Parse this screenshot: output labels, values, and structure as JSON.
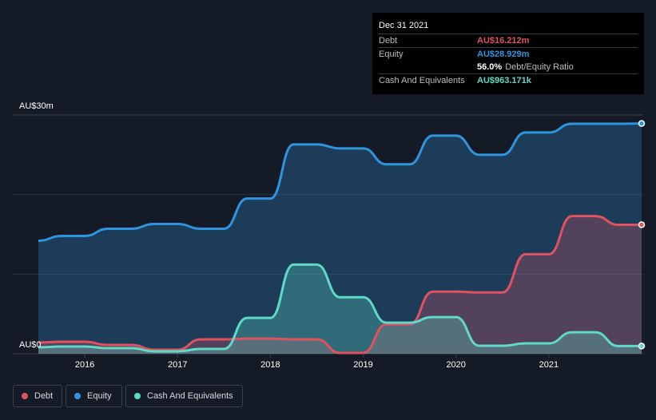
{
  "tooltip": {
    "date": "Dec 31 2021",
    "rows": [
      {
        "label": "Debt",
        "value": "AU$16.212m",
        "color": "#e05260"
      },
      {
        "label": "Equity",
        "value": "AU$28.929m",
        "color": "#2f94e0"
      },
      {
        "label": "",
        "value": "56.0%",
        "suffix": "Debt/Equity Ratio",
        "color": "#ffffff"
      },
      {
        "label": "Cash And Equivalents",
        "value": "AU$963.171k",
        "color": "#5fd9c8"
      }
    ]
  },
  "legend": [
    {
      "label": "Debt",
      "color": "#e05260"
    },
    {
      "label": "Equity",
      "color": "#2f94e0"
    },
    {
      "label": "Cash And Equivalents",
      "color": "#5fd9c8"
    }
  ],
  "chart_data": {
    "type": "area",
    "y_unit": "AU$m",
    "ylim": [
      0,
      30
    ],
    "ytick_labels": [
      "AU$30m",
      "AU$0"
    ],
    "xlim": [
      2015.5,
      2022.0
    ],
    "xtick_labels": [
      "2016",
      "2017",
      "2018",
      "2019",
      "2020",
      "2021"
    ],
    "xticks": [
      2016,
      2017,
      2018,
      2019,
      2020,
      2021
    ],
    "grid": true,
    "legend_position": "bottom-left",
    "series": [
      {
        "name": "Equity",
        "color": "#2f94e0",
        "points": [
          [
            2015.5,
            14.2
          ],
          [
            2015.75,
            14.8
          ],
          [
            2016.0,
            14.8
          ],
          [
            2016.25,
            15.7
          ],
          [
            2016.5,
            15.7
          ],
          [
            2016.75,
            16.3
          ],
          [
            2017.0,
            16.3
          ],
          [
            2017.25,
            15.7
          ],
          [
            2017.5,
            15.7
          ],
          [
            2017.75,
            19.5
          ],
          [
            2018.0,
            19.5
          ],
          [
            2018.25,
            26.3
          ],
          [
            2018.5,
            26.3
          ],
          [
            2018.75,
            25.8
          ],
          [
            2019.0,
            25.8
          ],
          [
            2019.25,
            23.8
          ],
          [
            2019.5,
            23.8
          ],
          [
            2019.75,
            27.4
          ],
          [
            2020.0,
            27.4
          ],
          [
            2020.25,
            25.0
          ],
          [
            2020.5,
            25.0
          ],
          [
            2020.75,
            27.8
          ],
          [
            2021.0,
            27.8
          ],
          [
            2021.25,
            28.9
          ],
          [
            2021.5,
            28.9
          ],
          [
            2021.75,
            28.9
          ],
          [
            2022.0,
            28.93
          ]
        ]
      },
      {
        "name": "Debt",
        "color": "#e05260",
        "points": [
          [
            2015.5,
            1.4
          ],
          [
            2015.75,
            1.5
          ],
          [
            2016.0,
            1.5
          ],
          [
            2016.25,
            1.1
          ],
          [
            2016.5,
            1.1
          ],
          [
            2016.75,
            0.5
          ],
          [
            2017.0,
            0.5
          ],
          [
            2017.25,
            1.8
          ],
          [
            2017.5,
            1.8
          ],
          [
            2017.75,
            1.9
          ],
          [
            2018.0,
            1.9
          ],
          [
            2018.25,
            1.8
          ],
          [
            2018.5,
            1.8
          ],
          [
            2018.75,
            0.1
          ],
          [
            2019.0,
            0.1
          ],
          [
            2019.25,
            3.7
          ],
          [
            2019.5,
            3.7
          ],
          [
            2019.75,
            7.8
          ],
          [
            2020.0,
            7.8
          ],
          [
            2020.25,
            7.7
          ],
          [
            2020.5,
            7.7
          ],
          [
            2020.75,
            12.5
          ],
          [
            2021.0,
            12.5
          ],
          [
            2021.25,
            17.3
          ],
          [
            2021.5,
            17.3
          ],
          [
            2021.75,
            16.2
          ],
          [
            2022.0,
            16.21
          ]
        ]
      },
      {
        "name": "Cash And Equivalents",
        "color": "#5fd9c8",
        "points": [
          [
            2015.5,
            0.8
          ],
          [
            2015.75,
            0.9
          ],
          [
            2016.0,
            0.9
          ],
          [
            2016.25,
            0.7
          ],
          [
            2016.5,
            0.7
          ],
          [
            2016.75,
            0.3
          ],
          [
            2017.0,
            0.3
          ],
          [
            2017.25,
            0.6
          ],
          [
            2017.5,
            0.6
          ],
          [
            2017.75,
            4.5
          ],
          [
            2018.0,
            4.5
          ],
          [
            2018.25,
            11.2
          ],
          [
            2018.5,
            11.2
          ],
          [
            2018.75,
            7.1
          ],
          [
            2019.0,
            7.1
          ],
          [
            2019.25,
            3.9
          ],
          [
            2019.5,
            3.9
          ],
          [
            2019.75,
            4.6
          ],
          [
            2020.0,
            4.6
          ],
          [
            2020.25,
            1.0
          ],
          [
            2020.5,
            1.0
          ],
          [
            2020.75,
            1.3
          ],
          [
            2021.0,
            1.3
          ],
          [
            2021.25,
            2.7
          ],
          [
            2021.5,
            2.7
          ],
          [
            2021.75,
            0.96
          ],
          [
            2022.0,
            0.96
          ]
        ]
      }
    ]
  }
}
